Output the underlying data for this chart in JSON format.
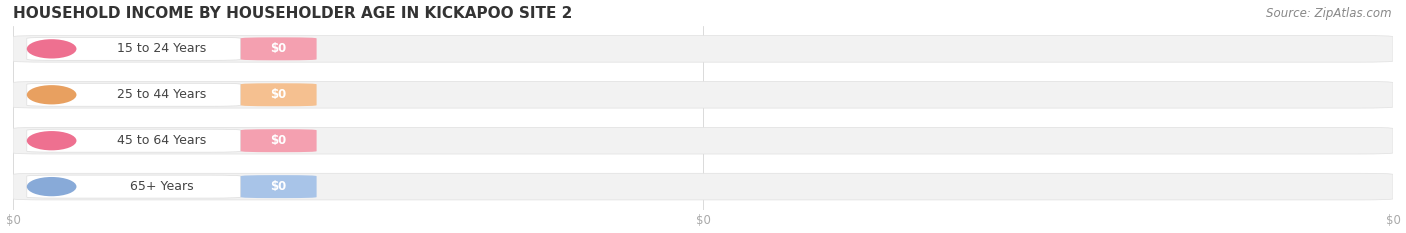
{
  "title": "HOUSEHOLD INCOME BY HOUSEHOLDER AGE IN KICKAPOO SITE 2",
  "source": "Source: ZipAtlas.com",
  "categories": [
    "15 to 24 Years",
    "25 to 44 Years",
    "45 to 64 Years",
    "65+ Years"
  ],
  "values": [
    0,
    0,
    0,
    0
  ],
  "bar_colors": [
    "#f4a0b0",
    "#f5c090",
    "#f4a0b0",
    "#a8c4e8"
  ],
  "label_colors": [
    "#ee7090",
    "#e8a060",
    "#ee7090",
    "#88aad8"
  ],
  "bg_color": "#ffffff",
  "bar_bg_color": "#f2f2f2",
  "bar_border_color": "#e0e0e0",
  "xlim_max": 1.0,
  "title_fontsize": 11,
  "source_fontsize": 8.5,
  "label_fontsize": 9,
  "value_fontsize": 8.5,
  "tick_fontsize": 8.5,
  "label_text_color": "#444444"
}
